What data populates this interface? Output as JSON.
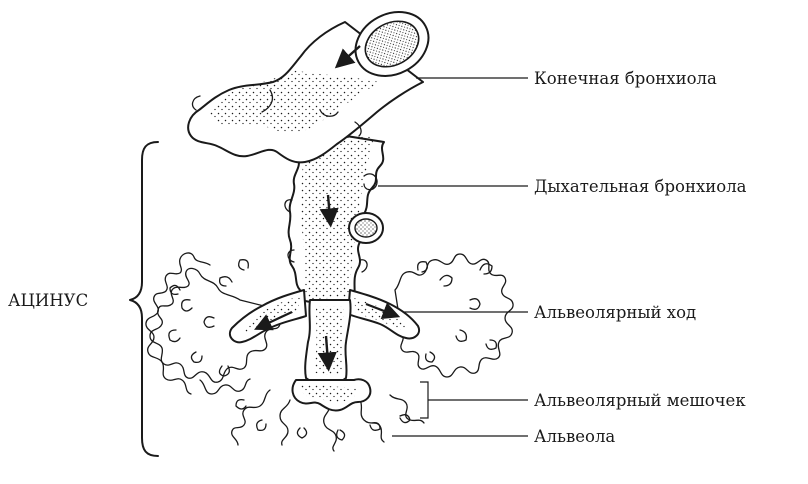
{
  "labels": {
    "terminal_bronchiole": "Конечная бронхиола",
    "respiratory_bronchiole": "Дыхательная бронхиола",
    "alveolar_duct": "Альвеолярный ход",
    "alveolar_sac": "Альвеолярный мешочек",
    "alveolus": "Альвеола",
    "acinus": "АЦИНУС"
  },
  "colors": {
    "ink": "#1a1a1a",
    "background": "#ffffff"
  }
}
